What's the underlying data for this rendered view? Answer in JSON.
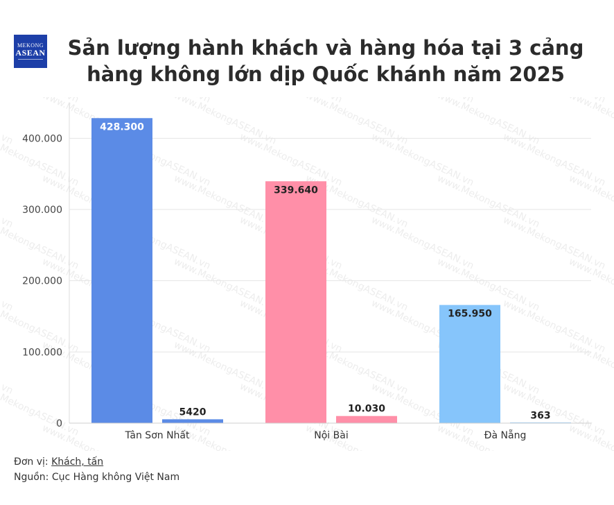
{
  "logo": {
    "line1": "MEKONG",
    "line2": "ASEAN"
  },
  "title": "Sản lượng hành khách và hàng hóa tại 3 cảng hàng không lớn dịp Quốc khánh năm 2025",
  "footer": {
    "unit_label": "Đơn vị: ",
    "unit_value": "Khách, tấn",
    "source": "Nguồn: Cục Hàng không Việt Nam"
  },
  "watermark": "www.MekongASEAN.vn",
  "chart_data": {
    "type": "bar",
    "categories": [
      "Tân Sơn Nhất",
      "Nội Bài",
      "Đà Nẵng"
    ],
    "series": [
      {
        "values": [
          428300,
          339640,
          165950
        ],
        "labels": [
          "428.300",
          "339.640",
          "165.950"
        ]
      },
      {
        "values": [
          5420,
          10030,
          363
        ],
        "labels": [
          "5420",
          "10.030",
          "363"
        ]
      }
    ],
    "colors": [
      [
        "#5b8be6",
        "#ff8fa8",
        "#86c5fb"
      ],
      [
        "#5b8be6",
        "#ff8fa8",
        "#86c5fb"
      ]
    ],
    "ylim": [
      0,
      450000
    ],
    "yticks": [
      0,
      100000,
      200000,
      300000,
      400000
    ],
    "ytick_labels": [
      "0",
      "100.000",
      "200.000",
      "300.000",
      "400.000"
    ],
    "grid": true
  }
}
